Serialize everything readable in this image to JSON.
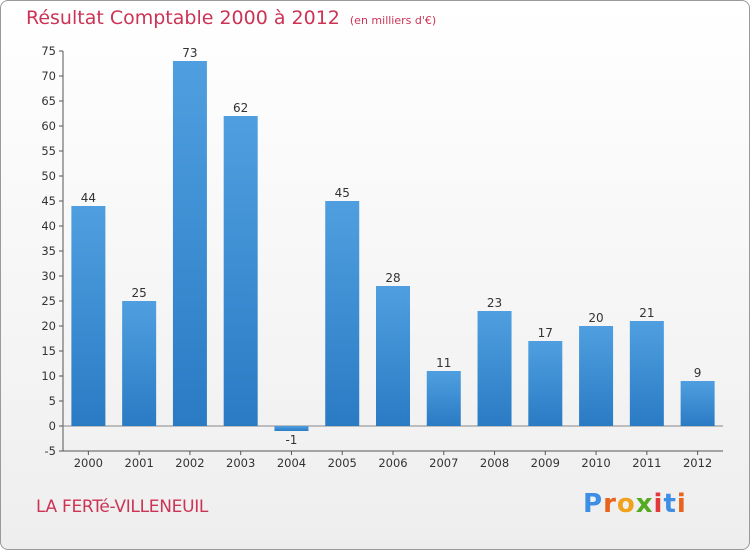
{
  "title": "Résultat Comptable 2000 à 2012",
  "subtitle": "(en milliers d'€)",
  "place": "LA FERTé-VILLENEUIL",
  "logo": {
    "text": "Proxiti",
    "letter_colors": [
      "#3e8ee5",
      "#e8631b",
      "#f0a21b",
      "#55aa22",
      "#e03a3a",
      "#3e8ee5",
      "#e8631b"
    ]
  },
  "colors": {
    "bar": "#4f9fe0",
    "bar_dark": "#2a7bc4",
    "title": "#cc3355"
  },
  "chart_data": {
    "type": "bar",
    "title": "Résultat Comptable 2000 à 2012",
    "xlabel": "",
    "ylabel": "",
    "categories": [
      "2000",
      "2001",
      "2002",
      "2003",
      "2004",
      "2005",
      "2006",
      "2007",
      "2008",
      "2009",
      "2010",
      "2011",
      "2012"
    ],
    "values": [
      44,
      25,
      73,
      62,
      -1,
      45,
      28,
      11,
      23,
      17,
      20,
      21,
      9
    ],
    "value_labels": [
      "44",
      "25",
      "73",
      "62",
      "-1",
      "45",
      "28",
      "11",
      "23",
      "17",
      "20",
      "21",
      "9"
    ],
    "ylim": [
      -5,
      75
    ],
    "yticks": [
      -5,
      0,
      5,
      10,
      15,
      20,
      25,
      30,
      35,
      40,
      45,
      50,
      55,
      60,
      65,
      70,
      75
    ],
    "grid": false
  }
}
